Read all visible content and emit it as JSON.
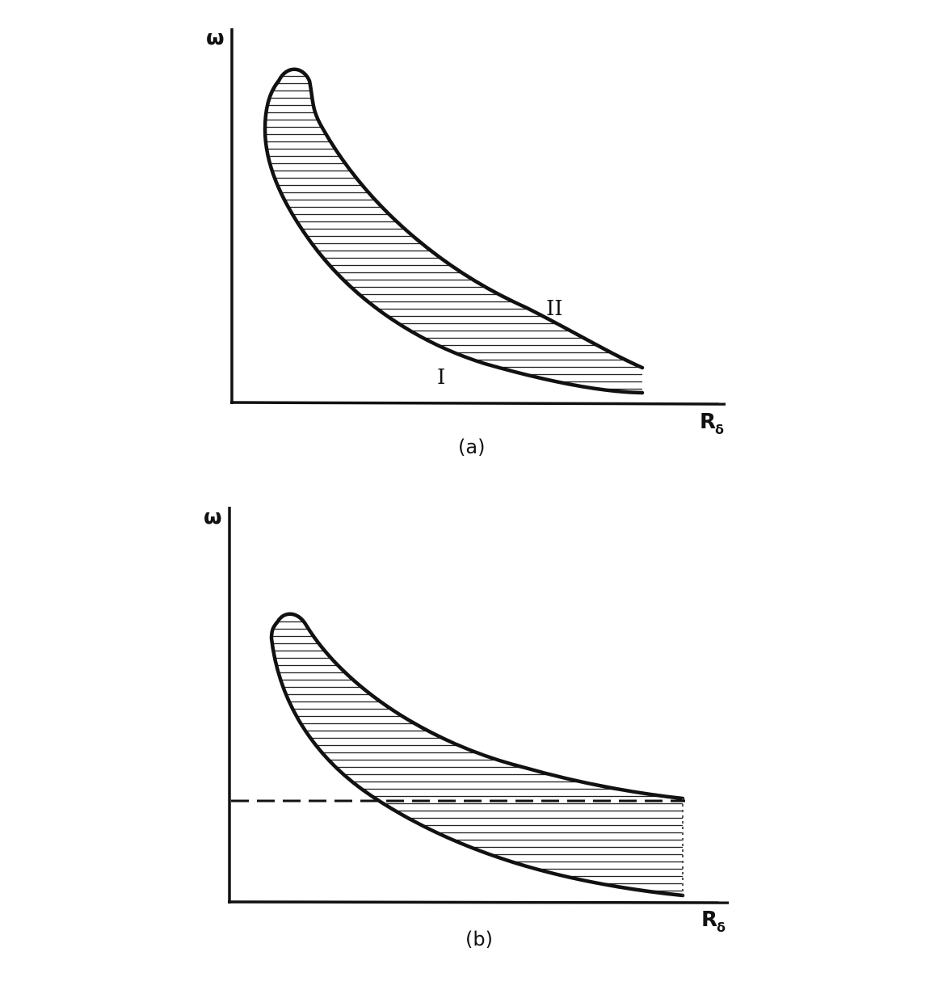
{
  "panels": [
    {
      "id": "a",
      "y_axis_label": "ω",
      "x_axis_label": "R",
      "x_axis_subscript": "δ",
      "caption": "(a)",
      "curve_labels": {
        "lower": "I",
        "upper": "II"
      }
    },
    {
      "id": "b",
      "y_axis_label": "ω",
      "x_axis_label": "R",
      "x_axis_subscript": "δ",
      "caption": "(b)"
    }
  ],
  "colors": {
    "ink": "#111111",
    "background": "#ffffff"
  }
}
